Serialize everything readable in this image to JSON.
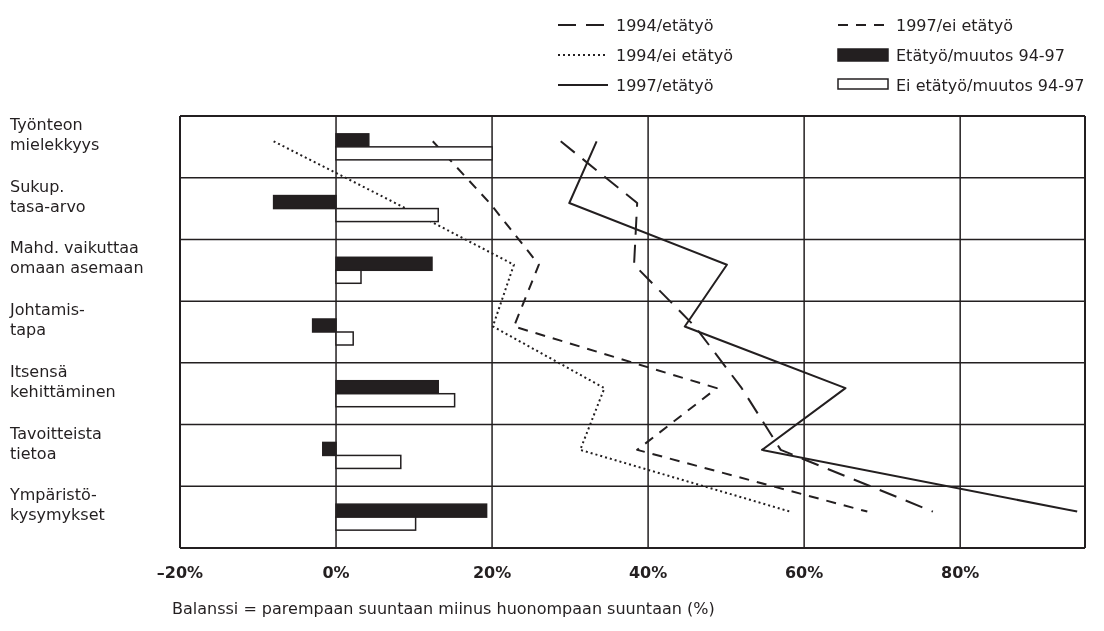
{
  "chart_data": {
    "type": "bar",
    "orientation": "horizontal",
    "xlabel": "Balanssi = parempaan suuntaan miinus huonompaan suuntaan (%)",
    "categories": [
      "Työnteon\nmielekkyys",
      "Sukup.\ntasa-arvo",
      "Mahd. vaikuttaa\nomaan asemaan",
      "Johtamis-\ntapa",
      "Itsensä\nkehittäminen",
      "Tavoitteista\ntietoa",
      "Ympäristö-\nkysymykset"
    ],
    "series": [
      {
        "name": "1994/etätyö",
        "type": "line",
        "line_style": "longdash",
        "color": "#231f20",
        "values": [
          28.8,
          38.6,
          38.2,
          46,
          52,
          57,
          76.5
        ]
      },
      {
        "name": "1994/ei etätyö",
        "type": "line",
        "line_style": "dotted",
        "color": "#231f20",
        "values": [
          -8,
          7.6,
          22.8,
          20.1,
          34.4,
          31.3,
          58.2
        ]
      },
      {
        "name": "1997/etätyö",
        "type": "line",
        "line_style": "solid",
        "color": "#231f20",
        "values": [
          33.4,
          29.9,
          50.1,
          44.7,
          65.3,
          54.6,
          95
        ]
      },
      {
        "name": "1997/ei etätyö",
        "type": "line",
        "line_style": "dashed",
        "color": "#231f20",
        "values": [
          12.4,
          19.7,
          26,
          22.8,
          48.8,
          38.6,
          68.1
        ]
      },
      {
        "name": "Etätyö/muutos 94-97",
        "type": "bar",
        "color": "#231f20",
        "values": [
          4.2,
          -8,
          12.3,
          -3,
          13.1,
          -1.7,
          19.3
        ]
      },
      {
        "name": "Ei etätyö/muutos 94-97",
        "type": "bar",
        "color": "#ffffff",
        "values": [
          20,
          13.1,
          3.2,
          2.2,
          15.2,
          8.3,
          10.2
        ]
      }
    ],
    "xlim": [
      -20,
      96
    ],
    "xticks": [
      {
        "value": -20,
        "label": "–20%"
      },
      {
        "value": 0,
        "label": "0%"
      },
      {
        "value": 20,
        "label": "20%"
      },
      {
        "value": 40,
        "label": "40%"
      },
      {
        "value": 60,
        "label": "60%"
      },
      {
        "value": 80,
        "label": "80%"
      }
    ],
    "grid": true,
    "legend": "top right"
  }
}
